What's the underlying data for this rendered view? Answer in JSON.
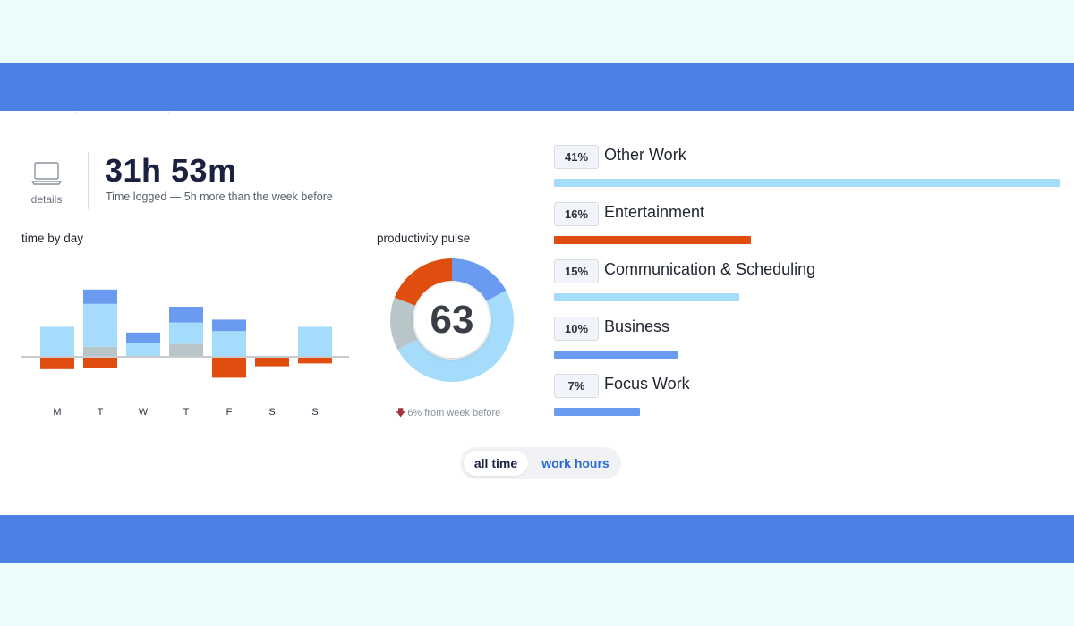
{
  "summary": {
    "details_label": "details",
    "total_time": "31h 53m",
    "total_subtitle": "Time logged — 5h more than the week before",
    "icon": "laptop-icon"
  },
  "time_by_day": {
    "title": "time by day",
    "chart_data": {
      "type": "bar",
      "categories": [
        "M",
        "T",
        "W",
        "T",
        "F",
        "S",
        "S"
      ],
      "series": [
        {
          "values": [
            0,
            1.0,
            0,
            1.1,
            0,
            0,
            0
          ]
        },
        {
          "values": [
            2.1,
            3.7,
            1.0,
            2.4,
            1.8,
            0,
            2.1
          ]
        },
        {
          "values": [
            0,
            0.7,
            0,
            0.9,
            0,
            0,
            0
          ]
        },
        {
          "values": [
            0,
            0,
            0.7,
            1.8,
            0.8,
            0,
            0
          ]
        },
        {
          "values": [
            -0.8,
            -0.7,
            0,
            0,
            -1.4,
            -0.6,
            -0.4
          ]
        }
      ],
      "colors": {
        "light_blue": "#a6dcfb",
        "gray": "#b9c6c9",
        "blue": "#6a9bf0",
        "orange": "#df4e0e",
        "baseline": "#c7ccd2"
      }
    }
  },
  "productivity_pulse": {
    "title": "productivity pulse",
    "score": "63",
    "change_text": "6% from week before",
    "change_icon": "arrow-down-icon",
    "chart_data": {
      "type": "pie",
      "segments": [
        {
          "color": "#6a9bf0",
          "value": 17
        },
        {
          "color": "#a6dcfb",
          "value": 50
        },
        {
          "color": "#b9c6c9",
          "value": 14
        },
        {
          "color": "#df4e0e",
          "value": 19
        }
      ]
    }
  },
  "categories": [
    {
      "percent": "41%",
      "name": "Other Work",
      "value": 41,
      "color": "#a6dcfb"
    },
    {
      "percent": "16%",
      "name": "Entertainment",
      "value": 16,
      "color": "#df4e0e"
    },
    {
      "percent": "15%",
      "name": "Communication & Scheduling",
      "value": 15,
      "color": "#a6dcfb"
    },
    {
      "percent": "10%",
      "name": "Business",
      "value": 10,
      "color": "#6a9bf0"
    },
    {
      "percent": "7%",
      "name": "Focus Work",
      "value": 7,
      "color": "#6a9bf0"
    }
  ],
  "toggle": {
    "options": [
      "all time",
      "work hours"
    ],
    "selected": "all time"
  }
}
